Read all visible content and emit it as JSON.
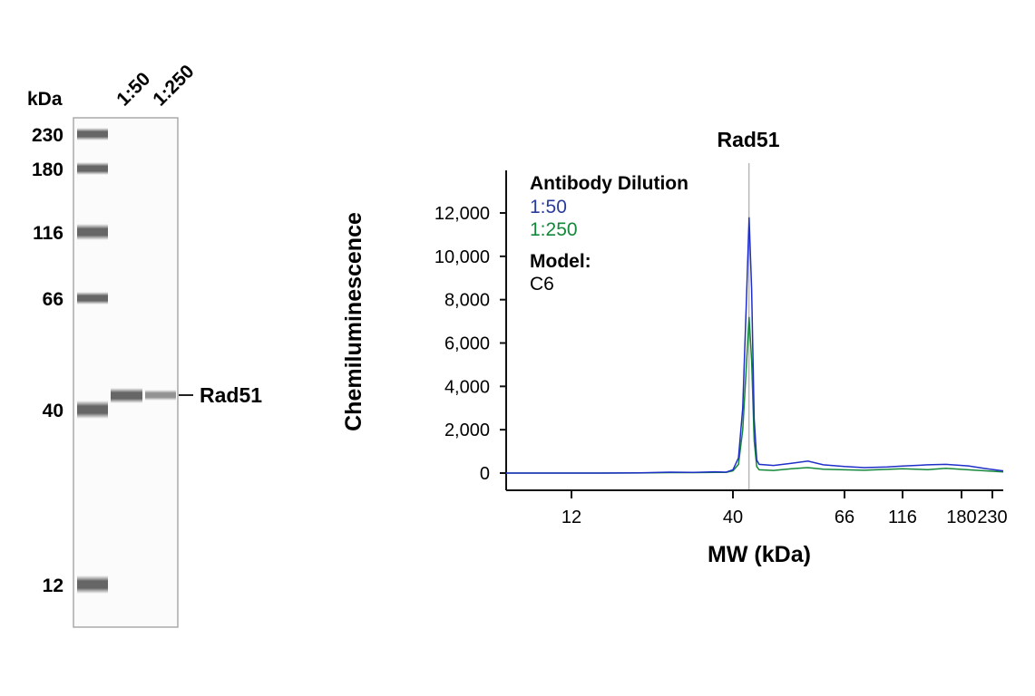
{
  "blot": {
    "unit_label": "kDa",
    "lane_labels": [
      "1:50",
      "1:250"
    ],
    "markers": [
      {
        "label": "230",
        "kda": 230
      },
      {
        "label": "180",
        "kda": 180
      },
      {
        "label": "116",
        "kda": 116
      },
      {
        "label": "66",
        "kda": 66
      },
      {
        "label": "40",
        "kda": 40
      },
      {
        "label": "12",
        "kda": 12
      }
    ],
    "band_label": "Rad51",
    "band_intensity": [
      0.85,
      0.55
    ]
  },
  "chart_data": {
    "type": "line",
    "title": "Rad51",
    "xlabel": "MW (kDa)",
    "ylabel": "Chemiluminescence",
    "xscale": "log (marker-calibrated)",
    "xlim": [
      7.4,
      250
    ],
    "ylim": [
      0,
      13500
    ],
    "x_ticks": [
      12,
      40,
      66,
      116,
      180,
      230
    ],
    "x_tick_labels": [
      "12",
      "40",
      "66",
      "116",
      "180",
      "230"
    ],
    "y_ticks": [
      0,
      2000,
      4000,
      6000,
      8000,
      10000,
      12000
    ],
    "y_tick_labels": [
      "0",
      "2,000",
      "4,000",
      "6,000",
      "8,000",
      "10,000",
      "12,000"
    ],
    "reference_line_kda": 43,
    "legend": {
      "title": "Antibody Dilution",
      "model_label": "Model:",
      "model_value": "C6",
      "placement": "top-left"
    },
    "series": [
      {
        "name": "1:50",
        "color": "#1f2fc8",
        "x": [
          7.4,
          15,
          20,
          25,
          30,
          35,
          38,
          40,
          41,
          41.8,
          42.5,
          43,
          43.5,
          44,
          44.5,
          45,
          48,
          52,
          56,
          60,
          66,
          80,
          100,
          116,
          140,
          160,
          190,
          220,
          250
        ],
        "y": [
          0,
          0,
          10,
          40,
          30,
          60,
          40,
          150,
          700,
          3000,
          8000,
          11800,
          8500,
          2500,
          600,
          400,
          350,
          450,
          550,
          380,
          300,
          250,
          280,
          320,
          380,
          400,
          330,
          200,
          100
        ]
      },
      {
        "name": "1:250",
        "color": "#14883a",
        "x": [
          7.4,
          15,
          20,
          25,
          30,
          35,
          38,
          40,
          41,
          41.8,
          42.5,
          43,
          43.5,
          44,
          44.5,
          45,
          48,
          52,
          56,
          60,
          66,
          80,
          100,
          116,
          140,
          160,
          190,
          220,
          250
        ],
        "y": [
          0,
          0,
          5,
          20,
          20,
          30,
          30,
          100,
          400,
          2000,
          5000,
          7200,
          5200,
          1500,
          300,
          150,
          120,
          200,
          250,
          180,
          150,
          130,
          170,
          200,
          160,
          220,
          150,
          100,
          50
        ]
      }
    ]
  }
}
